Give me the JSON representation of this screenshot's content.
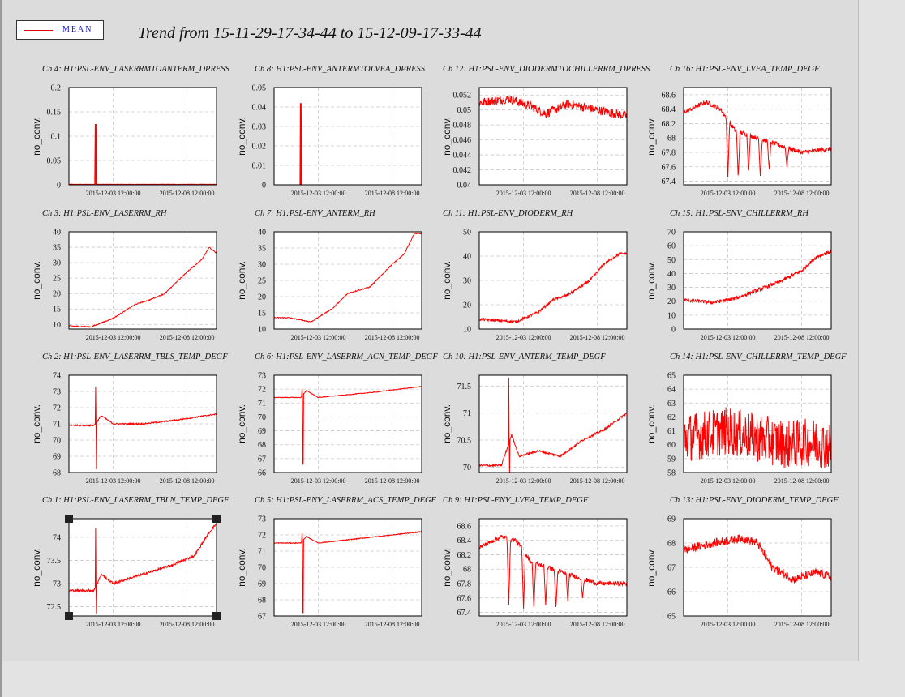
{
  "legend": {
    "label": "MEAN",
    "line_color": "#e00000"
  },
  "title": "Trend from 15-11-29-17-34-44 to 15-12-09-17-33-44",
  "colors": {
    "trace": "#ff0000",
    "grid": "#c8c8c8",
    "frame": "#000000",
    "plot_bg": "#ffffff"
  },
  "chart_data": [
    {
      "type": "line",
      "title": "Ch 4: H1:PSL-ENV_LASERRMTOANTERM_DPRESS",
      "ylabel": "no_conv.",
      "ylim": [
        0,
        0.2
      ],
      "yticks": [
        "0.2",
        "0.15",
        "0.1",
        "0.05",
        "0"
      ],
      "xticks": [
        "2015-12-03 12:00:00",
        "2015-12-08 12:00:00"
      ],
      "shape": "spike1",
      "base": 0.001,
      "spike_x": 0.18,
      "spike_y": 0.125,
      "noise": 0.0008
    },
    {
      "type": "line",
      "title": "Ch 8: H1:PSL-ENV_ANTERMTOLVEA_DPRESS",
      "ylabel": "no_conv.",
      "ylim": [
        0,
        0.05
      ],
      "yticks": [
        "0.05",
        "0.04",
        "0.03",
        "0.02",
        "0.01",
        "0"
      ],
      "xticks": [
        "2015-12-03 12:00:00",
        "2015-12-08 12:00:00"
      ],
      "shape": "spike2",
      "base": 0,
      "spike_x": 0.18,
      "spike_y": 0.042,
      "noise": 0
    },
    {
      "type": "line",
      "title": "Ch 12: H1:PSL-ENV_DIODERMTOCHILLERRM_DPRESS",
      "ylabel": "no_conv.",
      "ylim": [
        0.04,
        0.053
      ],
      "yticks": [
        "0.052",
        "0.05",
        "0.048",
        "0.046",
        "0.044",
        "0.042",
        "0.04"
      ],
      "xticks": [
        "2015-12-03 12:00:00",
        "2015-12-08 12:00:00"
      ],
      "shape": "band",
      "points": [
        [
          0,
          0.051
        ],
        [
          0.2,
          0.0515
        ],
        [
          0.35,
          0.0505
        ],
        [
          0.45,
          0.0495
        ],
        [
          0.6,
          0.0508
        ],
        [
          0.75,
          0.0502
        ],
        [
          1,
          0.0492
        ]
      ],
      "noise": 0.0012
    },
    {
      "type": "line",
      "title": "Ch 16: H1:PSL-ENV_LVEA_TEMP_DEGF",
      "ylabel": "no_conv.",
      "ylim": [
        67.35,
        68.7
      ],
      "yticks": [
        "68.6",
        "68.4",
        "68.2",
        "68",
        "67.8",
        "67.6",
        "67.4"
      ],
      "xticks": [
        "2015-12-03 12:00:00",
        "2015-12-08 12:00:00"
      ],
      "shape": "drops",
      "points": [
        [
          0,
          68.35
        ],
        [
          0.15,
          68.5
        ],
        [
          0.25,
          68.4
        ],
        [
          0.35,
          68.1
        ],
        [
          0.5,
          68.0
        ],
        [
          0.65,
          67.9
        ],
        [
          0.8,
          67.8
        ],
        [
          1,
          67.85
        ]
      ],
      "drops": [
        [
          0.3,
          67.45
        ],
        [
          0.37,
          67.45
        ],
        [
          0.44,
          67.5
        ],
        [
          0.52,
          67.45
        ],
        [
          0.58,
          67.55
        ],
        [
          0.7,
          67.6
        ]
      ],
      "noise": 0.06
    },
    {
      "type": "line",
      "title": "Ch 3: H1:PSL-ENV_LASERRM_RH",
      "ylabel": "no_conv.",
      "ylim": [
        8.5,
        40
      ],
      "yticks": [
        "40",
        "35",
        "30",
        "25",
        "20",
        "15",
        "10"
      ],
      "xticks": [
        "2015-12-03 12:00:00",
        "2015-12-08 12:00:00"
      ],
      "shape": "trend",
      "points": [
        [
          0,
          9.5
        ],
        [
          0.15,
          9.2
        ],
        [
          0.3,
          12
        ],
        [
          0.45,
          16.5
        ],
        [
          0.55,
          18
        ],
        [
          0.65,
          20
        ],
        [
          0.8,
          27
        ],
        [
          0.9,
          31
        ],
        [
          0.95,
          35
        ],
        [
          1,
          33
        ]
      ],
      "noise": 0.3
    },
    {
      "type": "line",
      "title": "Ch 7: H1:PSL-ENV_ANTERM_RH",
      "ylabel": "no_conv.",
      "ylim": [
        10,
        40
      ],
      "yticks": [
        "40",
        "35",
        "30",
        "25",
        "20",
        "15",
        "10"
      ],
      "xticks": [
        "2015-12-03 12:00:00",
        "2015-12-08 12:00:00"
      ],
      "shape": "trend",
      "points": [
        [
          0,
          13.5
        ],
        [
          0.1,
          13.5
        ],
        [
          0.25,
          12.2
        ],
        [
          0.4,
          16.5
        ],
        [
          0.5,
          21
        ],
        [
          0.65,
          23
        ],
        [
          0.8,
          30
        ],
        [
          0.88,
          33
        ],
        [
          0.95,
          39.5
        ],
        [
          1,
          39.5
        ]
      ],
      "noise": 0.3
    },
    {
      "type": "line",
      "title": "Ch 11: H1:PSL-ENV_DIODERM_RH",
      "ylabel": "no_conv.",
      "ylim": [
        10,
        50
      ],
      "yticks": [
        "50",
        "40",
        "30",
        "20",
        "10"
      ],
      "xticks": [
        "2015-12-03 12:00:00",
        "2015-12-08 12:00:00"
      ],
      "shape": "trend",
      "points": [
        [
          0,
          14
        ],
        [
          0.25,
          13
        ],
        [
          0.4,
          17
        ],
        [
          0.5,
          22
        ],
        [
          0.6,
          24
        ],
        [
          0.75,
          30
        ],
        [
          0.85,
          37
        ],
        [
          0.95,
          41
        ],
        [
          1,
          41
        ]
      ],
      "noise": 1.0
    },
    {
      "type": "line",
      "title": "Ch 15: H1:PSL-ENV_CHILLERRM_RH",
      "ylabel": "no_conv.",
      "ylim": [
        0,
        70
      ],
      "yticks": [
        "70",
        "60",
        "50",
        "40",
        "30",
        "20",
        "10",
        "0"
      ],
      "xticks": [
        "2015-12-03 12:00:00",
        "2015-12-08 12:00:00"
      ],
      "shape": "trend",
      "points": [
        [
          0,
          21
        ],
        [
          0.2,
          19
        ],
        [
          0.35,
          22
        ],
        [
          0.5,
          28
        ],
        [
          0.65,
          34
        ],
        [
          0.8,
          42
        ],
        [
          0.9,
          52
        ],
        [
          1,
          56
        ]
      ],
      "noise": 2.5
    },
    {
      "type": "line",
      "title": "Ch 2: H1:PSL-ENV_LASERRM_TBLS_TEMP_DEGF",
      "ylabel": "no_conv.",
      "ylim": [
        68,
        74
      ],
      "yticks": [
        "74",
        "73",
        "72",
        "71",
        "70",
        "69",
        "68"
      ],
      "xticks": [
        "2015-12-03 12:00:00",
        "2015-12-08 12:00:00"
      ],
      "shape": "glitch",
      "points": [
        [
          0,
          70.9
        ],
        [
          0.17,
          70.9
        ],
        [
          0.22,
          71.5
        ],
        [
          0.3,
          71.0
        ],
        [
          0.5,
          71.0
        ],
        [
          0.7,
          71.2
        ],
        [
          1,
          71.6
        ]
      ],
      "glitch_x": 0.18,
      "glitch_hi": 73.3,
      "glitch_lo": 68.2,
      "noise": 0.08
    },
    {
      "type": "line",
      "title": "Ch 6: H1:PSL-ENV_LASERRM_ACN_TEMP_DEGF",
      "ylabel": "no_conv.",
      "ylim": [
        66,
        73
      ],
      "yticks": [
        "73",
        "72",
        "71",
        "70",
        "69",
        "68",
        "67",
        "66"
      ],
      "xticks": [
        "2015-12-03 12:00:00",
        "2015-12-08 12:00:00"
      ],
      "shape": "glitch",
      "points": [
        [
          0,
          71.4
        ],
        [
          0.18,
          71.4
        ],
        [
          0.22,
          71.9
        ],
        [
          0.3,
          71.4
        ],
        [
          0.5,
          71.6
        ],
        [
          0.7,
          71.8
        ],
        [
          1,
          72.2
        ]
      ],
      "glitch_x": 0.19,
      "glitch_hi": 72.0,
      "glitch_lo": 66.6,
      "noise": 0.05
    },
    {
      "type": "line",
      "title": "Ch 10: H1:PSL-ENV_ANTERM_TEMP_DEGF",
      "ylabel": "no_conv.",
      "ylim": [
        69.9,
        71.7
      ],
      "yticks": [
        "71.5",
        "71",
        "70.5",
        "70"
      ],
      "xticks": [
        "2015-12-03 12:00:00",
        "2015-12-08 12:00:00"
      ],
      "shape": "glitch",
      "points": [
        [
          0,
          70.03
        ],
        [
          0.15,
          70.03
        ],
        [
          0.22,
          70.6
        ],
        [
          0.27,
          70.2
        ],
        [
          0.4,
          70.3
        ],
        [
          0.55,
          70.2
        ],
        [
          0.7,
          70.5
        ],
        [
          0.85,
          70.7
        ],
        [
          1,
          71.0
        ]
      ],
      "glitch_x": 0.2,
      "glitch_hi": 71.65,
      "glitch_lo": 69.9,
      "noise": 0.04
    },
    {
      "type": "line",
      "title": "Ch 14: H1:PSL-ENV_CHILLERRM_TEMP_DEGF",
      "ylabel": "no_conv.",
      "ylim": [
        58,
        65
      ],
      "yticks": [
        "65",
        "64",
        "63",
        "62",
        "61",
        "60",
        "59",
        "58"
      ],
      "xticks": [
        "2015-12-03 12:00:00",
        "2015-12-08 12:00:00"
      ],
      "shape": "band",
      "points": [
        [
          0,
          60.5
        ],
        [
          0.3,
          61
        ],
        [
          0.5,
          60.5
        ],
        [
          0.7,
          60
        ],
        [
          0.9,
          60.2
        ],
        [
          1,
          59.8
        ]
      ],
      "noise": 3.5
    },
    {
      "type": "line",
      "title": "Ch 1: H1:PSL-ENV_LASERRM_TBLN_TEMP_DEGF",
      "ylabel": "no_conv.",
      "ylim": [
        72.3,
        74.4
      ],
      "yticks": [
        "74",
        "73.5",
        "73",
        "72.5"
      ],
      "xticks": [
        "2015-12-03 12:00:00",
        "2015-12-08 12:00:00"
      ],
      "shape": "glitch",
      "points": [
        [
          0,
          72.85
        ],
        [
          0.17,
          72.85
        ],
        [
          0.22,
          73.2
        ],
        [
          0.3,
          73.0
        ],
        [
          0.5,
          73.2
        ],
        [
          0.7,
          73.4
        ],
        [
          0.85,
          73.6
        ],
        [
          0.95,
          74.1
        ],
        [
          1,
          74.3
        ]
      ],
      "glitch_x": 0.18,
      "glitch_hi": 74.2,
      "glitch_lo": 72.35,
      "noise": 0.05
    },
    {
      "type": "line",
      "title": "Ch 5: H1:PSL-ENV_LASERRM_ACS_TEMP_DEGF",
      "ylabel": "no_conv.",
      "ylim": [
        67,
        73
      ],
      "yticks": [
        "73",
        "72",
        "71",
        "70",
        "69",
        "68",
        "67"
      ],
      "xticks": [
        "2015-12-03 12:00:00",
        "2015-12-08 12:00:00"
      ],
      "shape": "glitch",
      "points": [
        [
          0,
          71.5
        ],
        [
          0.18,
          71.5
        ],
        [
          0.22,
          71.9
        ],
        [
          0.3,
          71.5
        ],
        [
          0.5,
          71.7
        ],
        [
          0.7,
          71.9
        ],
        [
          1,
          72.2
        ]
      ],
      "glitch_x": 0.19,
      "glitch_hi": 72.1,
      "glitch_lo": 67.2,
      "noise": 0.05
    },
    {
      "type": "line",
      "title": "Ch 9: H1:PSL-ENV_LVEA_TEMP_DEGF",
      "ylabel": "no_conv.",
      "ylim": [
        67.35,
        68.7
      ],
      "yticks": [
        "68.6",
        "68.4",
        "68.2",
        "68",
        "67.8",
        "67.6",
        "67.4"
      ],
      "xticks": [
        "2015-12-03 12:00:00",
        "2015-12-08 12:00:00"
      ],
      "shape": "drops",
      "points": [
        [
          0,
          68.3
        ],
        [
          0.15,
          68.45
        ],
        [
          0.25,
          68.4
        ],
        [
          0.35,
          68.1
        ],
        [
          0.5,
          68.0
        ],
        [
          0.65,
          67.9
        ],
        [
          0.8,
          67.8
        ],
        [
          1,
          67.8
        ]
      ],
      "drops": [
        [
          0.2,
          67.5
        ],
        [
          0.3,
          67.45
        ],
        [
          0.37,
          67.45
        ],
        [
          0.45,
          67.5
        ],
        [
          0.52,
          67.45
        ],
        [
          0.6,
          67.55
        ],
        [
          0.7,
          67.6
        ]
      ],
      "noise": 0.06
    },
    {
      "type": "line",
      "title": "Ch 13: H1:PSL-ENV_DIODERM_TEMP_DEGF",
      "ylabel": "no_conv.",
      "ylim": [
        65,
        69
      ],
      "yticks": [
        "69",
        "68",
        "67",
        "66",
        "65"
      ],
      "xticks": [
        "2015-12-03 12:00:00",
        "2015-12-08 12:00:00"
      ],
      "shape": "trend",
      "points": [
        [
          0,
          67.7
        ],
        [
          0.2,
          68.0
        ],
        [
          0.4,
          68.2
        ],
        [
          0.5,
          68.0
        ],
        [
          0.6,
          67.0
        ],
        [
          0.75,
          66.5
        ],
        [
          0.9,
          66.8
        ],
        [
          1,
          66.6
        ]
      ],
      "noise": 0.35
    }
  ]
}
